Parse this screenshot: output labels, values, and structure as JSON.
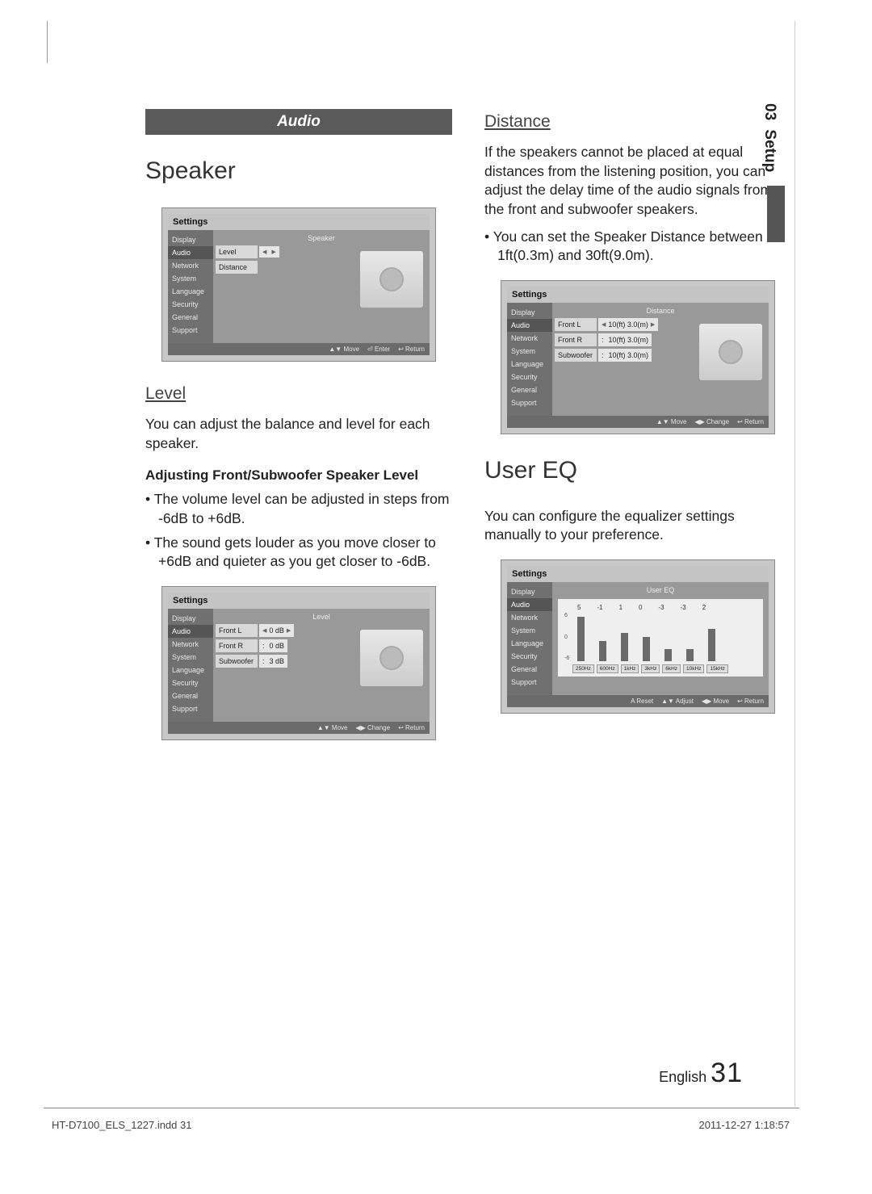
{
  "side_tab": {
    "num": "03",
    "label": "Setup"
  },
  "left": {
    "bar": "Audio",
    "h_speaker": "Speaker",
    "shot1": {
      "title_prefix": "Settin",
      "title_suffix": "gs",
      "panel_head": "Speaker",
      "sidebar": [
        "Display",
        "Audio",
        "Network",
        "System",
        "Language",
        "Security",
        "General",
        "Support"
      ],
      "rows": [
        {
          "label": "Level",
          "val": "",
          "arrows": true
        },
        {
          "label": "Distance",
          "val": "",
          "arrows": false
        }
      ],
      "hints": [
        "▲▼ Move",
        "⏎ Enter",
        "↩ Return"
      ]
    },
    "h_level": "Level",
    "p_level": "You can adjust the balance and level for each speaker.",
    "p_adj": "Adjusting Front/Subwoofer Speaker Level",
    "bul1": "The volume level can be adjusted in steps from -6dB to +6dB.",
    "bul2": "The sound gets louder as you move closer to +6dB and quieter as you get closer to -6dB.",
    "shot2": {
      "title_prefix": "Settin",
      "title_suffix": "gs",
      "panel_head": "Level",
      "sidebar": [
        "Display",
        "Audio",
        "Network",
        "System",
        "Language",
        "Security",
        "General",
        "Support"
      ],
      "rows": [
        {
          "label": "Front L",
          "val": "0 dB",
          "arrows": true
        },
        {
          "label": "Front R",
          "val": "0 dB",
          "arrows": false,
          "colon": true
        },
        {
          "label": "Subwoofer",
          "val": "3 dB",
          "arrows": false,
          "colon": true
        }
      ],
      "hints": [
        "▲▼ Move",
        "◀▶ Change",
        "↩ Return"
      ]
    }
  },
  "right": {
    "h_dist": "Distance",
    "p_dist": "If the speakers cannot be placed at equal distances from the listening position, you can adjust the delay time of the audio signals from the front and subwoofer speakers.",
    "bul_dist": "You can set the Speaker Distance between 1ft(0.3m) and 30ft(9.0m).",
    "shot1": {
      "title_prefix": "Settin",
      "title_suffix": "gs",
      "panel_head": "Distance",
      "sidebar": [
        "Display",
        "Audio",
        "Network",
        "System",
        "Language",
        "Security",
        "General",
        "Support"
      ],
      "rows": [
        {
          "label": "Front L",
          "val": "10(ft) 3.0(m)",
          "arrows": true
        },
        {
          "label": "Front R",
          "val": "10(ft) 3.0(m)",
          "arrows": false,
          "colon": true
        },
        {
          "label": "Subwoofer",
          "val": "10(ft) 3.0(m)",
          "arrows": false,
          "colon": true
        }
      ],
      "hints": [
        "▲▼ Move",
        "◀▶ Change",
        "↩ Return"
      ]
    },
    "h_eq": "User EQ",
    "p_eq": "You can configure the equalizer settings manually to your preference.",
    "shot2": {
      "title_prefix": "Settin",
      "title_suffix": "gs",
      "panel_head": "User EQ",
      "sidebar": [
        "Display",
        "Audio",
        "Network",
        "System",
        "Language",
        "Security",
        "General",
        "Support"
      ],
      "eq": {
        "vals": [
          "5",
          "-1",
          "1",
          "0",
          "-3",
          "-3",
          "2"
        ],
        "heights": [
          55,
          25,
          35,
          30,
          15,
          15,
          40
        ],
        "scale": [
          "6",
          "0",
          "-6"
        ],
        "freq": [
          "250Hz",
          "600Hz",
          "1kHz",
          "3kHz",
          "6kHz",
          "10kHz",
          "15kHz"
        ]
      },
      "hints": [
        "A Reset",
        "▲▼ Adjust",
        "◀▶ Move",
        "↩ Return"
      ]
    }
  },
  "footer": {
    "lang": "English",
    "page": "31",
    "indd": "HT-D7100_ELS_1227.indd   31",
    "ts": "2011-12-27    1:18:57"
  }
}
